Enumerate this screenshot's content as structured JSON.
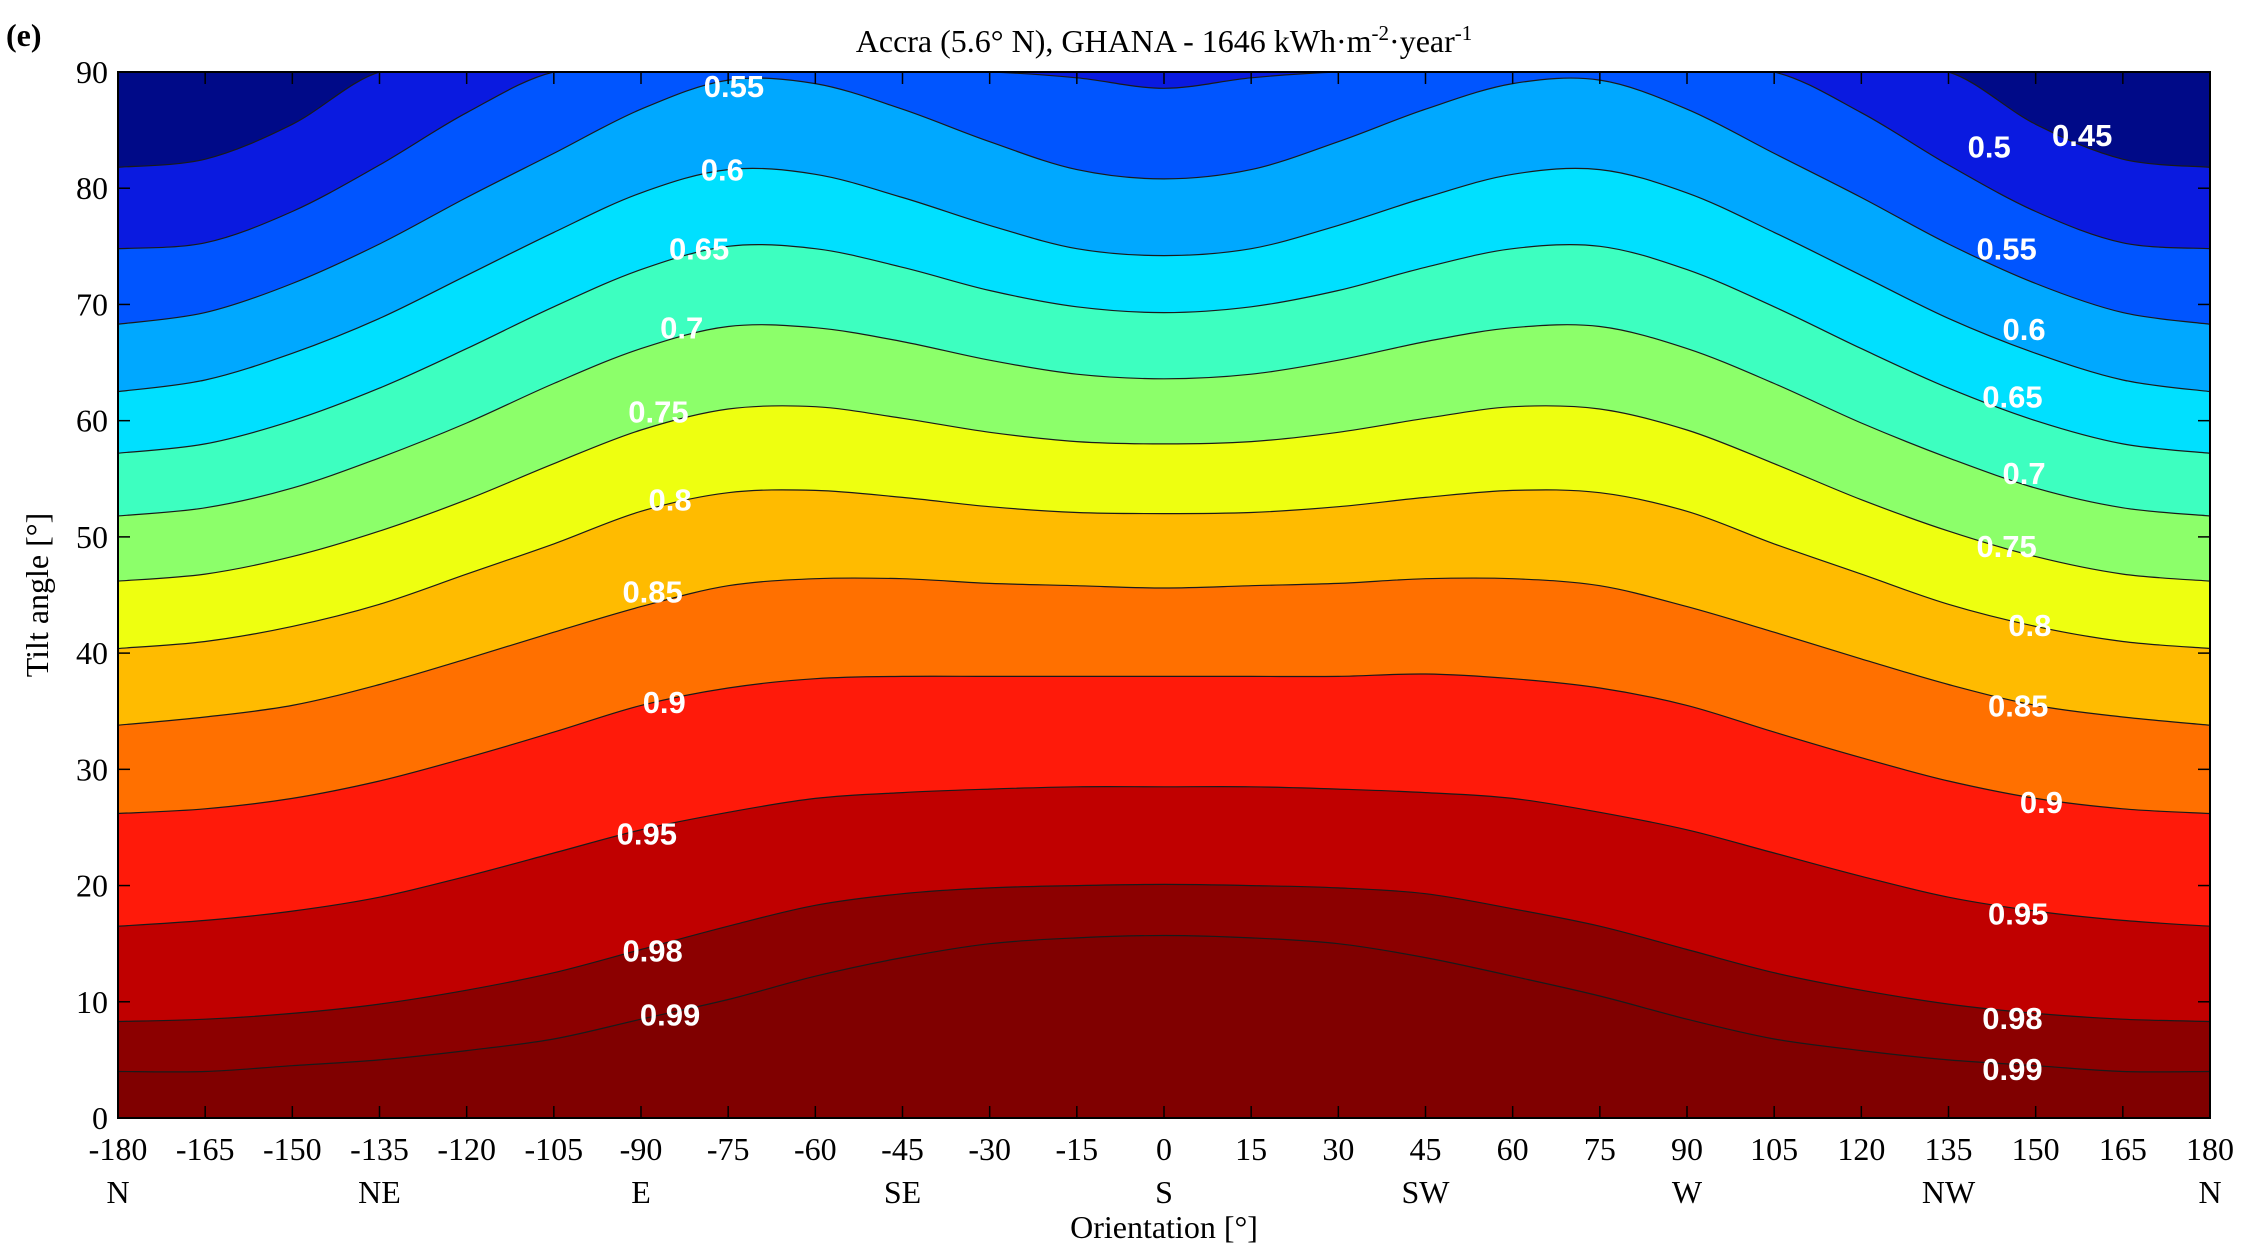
{
  "chart_data": {
    "type": "contour",
    "panel_label": "(e)",
    "title": "Accra (5.6° N), GHANA - 1646 kWh·m-2·year-1",
    "title_parts": {
      "main": "Accra (5.6° N), GHANA - 1646 kWh·m",
      "sup1": "-2",
      "mid": "·year",
      "sup2": "-1"
    },
    "xlabel": "Orientation [°]",
    "ylabel": "Tilt angle [°]",
    "xlim": [
      -180,
      180
    ],
    "ylim": [
      0,
      90
    ],
    "x_ticks": [
      -180,
      -165,
      -150,
      -135,
      -120,
      -105,
      -90,
      -75,
      -60,
      -45,
      -30,
      -15,
      0,
      15,
      30,
      45,
      60,
      75,
      90,
      105,
      120,
      135,
      150,
      165,
      180
    ],
    "y_ticks": [
      0,
      10,
      20,
      30,
      40,
      50,
      60,
      70,
      80,
      90
    ],
    "direction_labels": [
      {
        "x": -180,
        "text": "N"
      },
      {
        "x": -135,
        "text": "NE"
      },
      {
        "x": -90,
        "text": "E"
      },
      {
        "x": -45,
        "text": "SE"
      },
      {
        "x": 0,
        "text": "S"
      },
      {
        "x": 45,
        "text": "SW"
      },
      {
        "x": 90,
        "text": "W"
      },
      {
        "x": 135,
        "text": "NW"
      },
      {
        "x": 180,
        "text": "N"
      }
    ],
    "contour_x": [
      -180,
      -165,
      -150,
      -135,
      -120,
      -105,
      -90,
      -75,
      -60,
      -45,
      -30,
      -15,
      0,
      15,
      30,
      45,
      60,
      75,
      90,
      105,
      120,
      135,
      150,
      165,
      180
    ],
    "contours": [
      {
        "level": 0.99,
        "color": "#800000",
        "tilt": [
          4,
          4,
          4.5,
          5,
          5.8,
          6.8,
          8.5,
          10.2,
          12.2,
          13.8,
          15,
          15.5,
          15.7,
          15.5,
          15,
          13.8,
          12.2,
          10.5,
          8.5,
          6.8,
          5.8,
          5,
          4.5,
          4,
          4
        ]
      },
      {
        "level": 0.98,
        "color": "#8c0000",
        "tilt": [
          8.3,
          8.5,
          9,
          9.8,
          11,
          12.5,
          14.5,
          16.5,
          18.3,
          19.3,
          19.8,
          20,
          20.1,
          20,
          19.8,
          19.3,
          18,
          16.5,
          14.5,
          12.5,
          11,
          9.8,
          9,
          8.5,
          8.3
        ]
      },
      {
        "level": 0.95,
        "color": "#c00000",
        "tilt": [
          16.5,
          17,
          17.8,
          19,
          20.8,
          22.8,
          24.8,
          26.3,
          27.5,
          28,
          28.3,
          28.5,
          28.5,
          28.5,
          28.3,
          28,
          27.5,
          26.3,
          24.8,
          22.8,
          20.8,
          19,
          17.8,
          17,
          16.5
        ]
      },
      {
        "level": 0.9,
        "color": "#ff1a0a",
        "tilt": [
          26.2,
          26.6,
          27.5,
          29,
          31,
          33.2,
          35.5,
          37,
          37.8,
          38,
          38,
          38,
          38,
          38,
          38,
          38.2,
          37.8,
          37,
          35.5,
          33.2,
          31,
          29,
          27.5,
          26.6,
          26.2
        ]
      },
      {
        "level": 0.85,
        "color": "#ff7000",
        "tilt": [
          33.8,
          34.5,
          35.5,
          37.3,
          39.5,
          41.8,
          44,
          45.8,
          46.4,
          46.4,
          46,
          45.8,
          45.6,
          45.8,
          46,
          46.4,
          46.4,
          45.8,
          44,
          41.8,
          39.5,
          37.3,
          35.5,
          34.5,
          33.8
        ]
      },
      {
        "level": 0.8,
        "color": "#ffbb00",
        "tilt": [
          40.4,
          41,
          42.3,
          44.2,
          46.8,
          49.4,
          52.2,
          53.8,
          54,
          53.4,
          52.6,
          52.1,
          52,
          52.1,
          52.6,
          53.4,
          54,
          53.8,
          52.2,
          49.4,
          46.8,
          44.2,
          42.3,
          41,
          40.4
        ]
      },
      {
        "level": 0.75,
        "color": "#eeff10",
        "tilt": [
          46.2,
          46.8,
          48.3,
          50.5,
          53.2,
          56.3,
          59.2,
          61,
          61.2,
          60.2,
          59,
          58.2,
          58,
          58.2,
          59,
          60.2,
          61.2,
          61,
          59.2,
          56.3,
          53.2,
          50.5,
          48.3,
          46.8,
          46.2
        ]
      },
      {
        "level": 0.7,
        "color": "#8cff6a",
        "tilt": [
          51.8,
          52.5,
          54.2,
          56.8,
          59.8,
          63.2,
          66.2,
          68.1,
          68,
          66.8,
          65.2,
          64,
          63.6,
          64,
          65.2,
          66.8,
          68,
          68.1,
          66.2,
          63.2,
          59.8,
          56.8,
          54.2,
          52.5,
          51.8
        ]
      },
      {
        "level": 0.65,
        "color": "#3dffc0",
        "tilt": [
          57.2,
          58,
          60,
          62.8,
          66.2,
          69.8,
          73,
          75,
          74.8,
          73.2,
          71.2,
          69.8,
          69.3,
          69.8,
          71.2,
          73.2,
          74.8,
          75,
          73,
          69.8,
          66.2,
          62.8,
          60,
          58,
          57.2
        ]
      },
      {
        "level": 0.6,
        "color": "#00e0ff",
        "tilt": [
          62.5,
          63.5,
          65.8,
          68.8,
          72.5,
          76.2,
          79.6,
          81.6,
          81.2,
          79.2,
          76.8,
          74.8,
          74.2,
          74.8,
          76.8,
          79.2,
          81.2,
          81.6,
          79.6,
          76.2,
          72.5,
          68.8,
          65.8,
          63.5,
          62.5
        ]
      },
      {
        "level": 0.55,
        "color": "#00a8ff",
        "tilt": [
          68.3,
          69.3,
          71.8,
          75.2,
          79.2,
          83,
          86.8,
          89.3,
          89,
          86.8,
          84,
          81.6,
          80.8,
          81.6,
          84,
          86.8,
          89,
          89.3,
          86.8,
          83,
          79.2,
          75.2,
          71.8,
          69.3,
          68.3
        ]
      },
      {
        "level": 0.5,
        "color": "#0055ff",
        "tilt": [
          74.8,
          75.3,
          78,
          82,
          86.5,
          90,
          90,
          90,
          90,
          90,
          90,
          89.5,
          88.6,
          89.5,
          90,
          90,
          90,
          90,
          90,
          90,
          86.5,
          82,
          78,
          75.3,
          74.8
        ]
      },
      {
        "level": 0.45,
        "color": "#0a1ae0",
        "tilt": [
          81.8,
          82.5,
          85.5,
          90,
          90,
          90,
          90,
          90,
          90,
          90,
          90,
          90,
          90,
          90,
          90,
          90,
          90,
          90,
          90,
          90,
          90,
          90,
          85.5,
          82.5,
          81.8
        ]
      }
    ],
    "top_color": "#000a88",
    "contour_labels": [
      {
        "text": "0.55",
        "x": -74,
        "y": 88.8
      },
      {
        "text": "0.6",
        "x": -76,
        "y": 81.6
      },
      {
        "text": "0.65",
        "x": -80,
        "y": 74.8
      },
      {
        "text": "0.7",
        "x": -83,
        "y": 68
      },
      {
        "text": "0.75",
        "x": -87,
        "y": 60.8
      },
      {
        "text": "0.8",
        "x": -85,
        "y": 53.2
      },
      {
        "text": "0.85",
        "x": -88,
        "y": 45.3
      },
      {
        "text": "0.9",
        "x": -86,
        "y": 35.8
      },
      {
        "text": "0.95",
        "x": -89,
        "y": 24.5
      },
      {
        "text": "0.98",
        "x": -88,
        "y": 14.4
      },
      {
        "text": "0.99",
        "x": -85,
        "y": 8.9
      },
      {
        "text": "0.45",
        "x": 158,
        "y": 84.6
      },
      {
        "text": "0.5",
        "x": 142,
        "y": 83.6
      },
      {
        "text": "0.55",
        "x": 145,
        "y": 74.8
      },
      {
        "text": "0.6",
        "x": 148,
        "y": 67.9
      },
      {
        "text": "0.65",
        "x": 146,
        "y": 62.1
      },
      {
        "text": "0.7",
        "x": 148,
        "y": 55.5
      },
      {
        "text": "0.75",
        "x": 145,
        "y": 49.2
      },
      {
        "text": "0.8",
        "x": 149,
        "y": 42.4
      },
      {
        "text": "0.85",
        "x": 147,
        "y": 35.5
      },
      {
        "text": "0.9",
        "x": 151,
        "y": 27.2
      },
      {
        "text": "0.95",
        "x": 147,
        "y": 17.6
      },
      {
        "text": "0.98",
        "x": 146,
        "y": 8.6
      },
      {
        "text": "0.99",
        "x": 146,
        "y": 4.2
      }
    ]
  }
}
